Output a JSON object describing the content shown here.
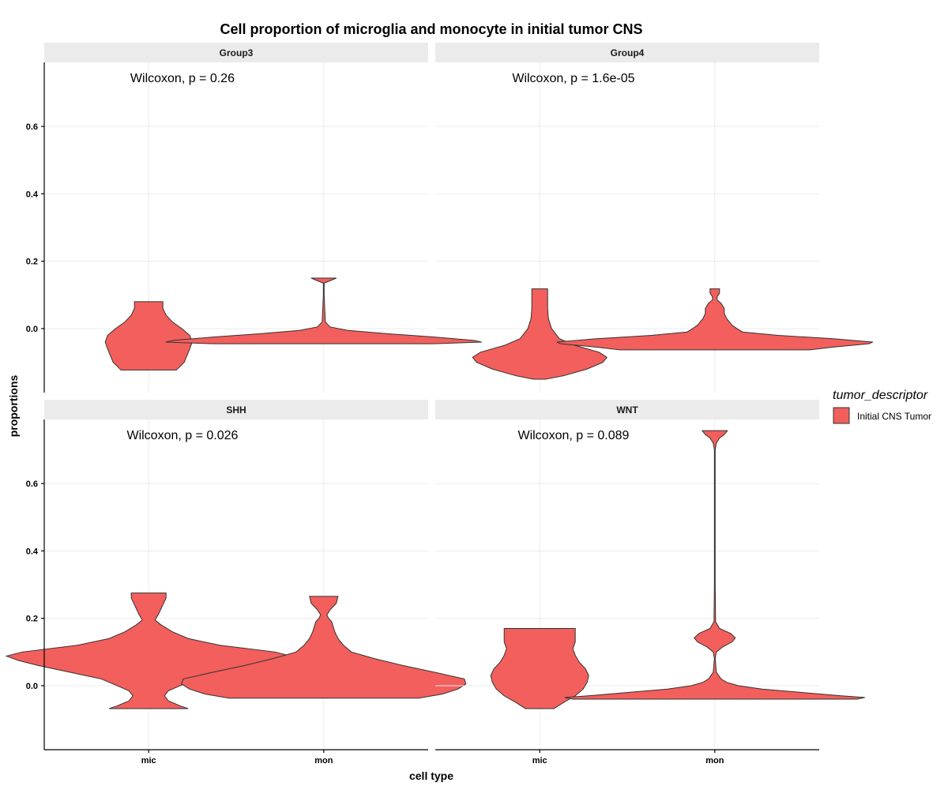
{
  "chart_data": {
    "type": "violin",
    "title": "Cell proportion of microglia and monocyte in initial tumor CNS",
    "xlabel": "cell type",
    "ylabel": "proportions",
    "categories": [
      "mic",
      "mon"
    ],
    "y_ticks": [
      0.0,
      0.2,
      0.4,
      0.6
    ],
    "y_tick_labels": [
      "0.0",
      "0.2",
      "0.4",
      "0.6"
    ],
    "ylim": [
      -0.19,
      0.79
    ],
    "grid": true,
    "legend": {
      "title": "tumor_descriptor",
      "position": "right",
      "entries": [
        {
          "label": "Initial CNS Tumor",
          "color": "#F25F5C"
        }
      ]
    },
    "fill_color": "#F25F5C",
    "panels": [
      {
        "name": "Group3",
        "annotation": "Wilcoxon, p = 0.26",
        "violins": [
          {
            "category": "mic",
            "min": -0.123,
            "max": 0.08,
            "profile": [
              [
                -0.123,
                0.35
              ],
              [
                -0.1,
                0.45
              ],
              [
                -0.06,
                0.52
              ],
              [
                -0.04,
                0.55
              ],
              [
                -0.02,
                0.52
              ],
              [
                0.0,
                0.42
              ],
              [
                0.02,
                0.3
              ],
              [
                0.04,
                0.22
              ],
              [
                0.06,
                0.18
              ],
              [
                0.08,
                0.18
              ]
            ]
          },
          {
            "category": "mon",
            "min": -0.045,
            "max": 0.15,
            "profile": [
              [
                -0.045,
                1.4
              ],
              [
                -0.04,
                2.0
              ],
              [
                -0.035,
                1.9
              ],
              [
                -0.025,
                1.4
              ],
              [
                -0.015,
                0.8
              ],
              [
                -0.005,
                0.3
              ],
              [
                0.005,
                0.08
              ],
              [
                0.02,
                0.02
              ],
              [
                0.1,
                0.005
              ],
              [
                0.135,
                0.005
              ],
              [
                0.142,
                0.08
              ],
              [
                0.15,
                0.16
              ]
            ]
          }
        ]
      },
      {
        "name": "Group4",
        "annotation": "Wilcoxon, p = 1.6e-05",
        "violins": [
          {
            "category": "mic",
            "min": -0.15,
            "max": 0.118,
            "profile": [
              [
                -0.15,
                0.08
              ],
              [
                -0.14,
                0.3
              ],
              [
                -0.12,
                0.6
              ],
              [
                -0.1,
                0.8
              ],
              [
                -0.085,
                0.85
              ],
              [
                -0.07,
                0.75
              ],
              [
                -0.05,
                0.45
              ],
              [
                -0.03,
                0.25
              ],
              [
                0.0,
                0.15
              ],
              [
                0.03,
                0.11
              ],
              [
                0.06,
                0.1
              ],
              [
                0.1,
                0.1
              ],
              [
                0.118,
                0.1
              ]
            ]
          },
          {
            "category": "mon",
            "min": -0.063,
            "max": 0.118,
            "profile": [
              [
                -0.063,
                1.2
              ],
              [
                -0.055,
                1.5
              ],
              [
                -0.045,
                1.95
              ],
              [
                -0.04,
                2.0
              ],
              [
                -0.03,
                1.5
              ],
              [
                -0.02,
                0.8
              ],
              [
                -0.01,
                0.35
              ],
              [
                0.0,
                0.28
              ],
              [
                0.01,
                0.22
              ],
              [
                0.03,
                0.15
              ],
              [
                0.045,
                0.12
              ],
              [
                0.06,
                0.12
              ],
              [
                0.075,
                0.08
              ],
              [
                0.085,
                0.03
              ],
              [
                0.095,
                0.03
              ],
              [
                0.105,
                0.06
              ],
              [
                0.118,
                0.06
              ]
            ]
          }
        ]
      },
      {
        "name": "SHH",
        "annotation": "Wilcoxon, p = 0.026",
        "violins": [
          {
            "category": "mic",
            "min": -0.068,
            "max": 0.275,
            "profile": [
              [
                -0.068,
                0.5
              ],
              [
                -0.06,
                0.4
              ],
              [
                -0.045,
                0.25
              ],
              [
                -0.03,
                0.2
              ],
              [
                -0.015,
                0.25
              ],
              [
                0.0,
                0.4
              ],
              [
                0.02,
                0.6
              ],
              [
                0.04,
                1.0
              ],
              [
                0.06,
                1.4
              ],
              [
                0.075,
                1.65
              ],
              [
                0.088,
                1.8
              ],
              [
                0.1,
                1.6
              ],
              [
                0.12,
                0.9
              ],
              [
                0.14,
                0.5
              ],
              [
                0.16,
                0.3
              ],
              [
                0.18,
                0.16
              ],
              [
                0.195,
                0.08
              ],
              [
                0.21,
                0.12
              ],
              [
                0.24,
                0.18
              ],
              [
                0.26,
                0.22
              ],
              [
                0.275,
                0.22
              ]
            ]
          },
          {
            "category": "mon",
            "min": -0.037,
            "max": 0.265,
            "profile": [
              [
                -0.037,
                1.2
              ],
              [
                -0.025,
                1.5
              ],
              [
                -0.01,
                1.7
              ],
              [
                0.005,
                1.8
              ],
              [
                0.02,
                1.78
              ],
              [
                0.04,
                1.4
              ],
              [
                0.06,
                1.0
              ],
              [
                0.08,
                0.65
              ],
              [
                0.1,
                0.35
              ],
              [
                0.12,
                0.25
              ],
              [
                0.14,
                0.18
              ],
              [
                0.16,
                0.14
              ],
              [
                0.19,
                0.1
              ],
              [
                0.2,
                0.06
              ],
              [
                0.21,
                0.04
              ],
              [
                0.225,
                0.08
              ],
              [
                0.245,
                0.16
              ],
              [
                0.265,
                0.18
              ]
            ]
          }
        ]
      },
      {
        "name": "WNT",
        "annotation": "Wilcoxon, p = 0.089",
        "violins": [
          {
            "category": "mic",
            "min": -0.068,
            "max": 0.17,
            "profile": [
              [
                -0.068,
                0.18
              ],
              [
                -0.05,
                0.3
              ],
              [
                -0.03,
                0.45
              ],
              [
                -0.01,
                0.55
              ],
              [
                0.01,
                0.6
              ],
              [
                0.03,
                0.62
              ],
              [
                0.05,
                0.58
              ],
              [
                0.07,
                0.5
              ],
              [
                0.09,
                0.45
              ],
              [
                0.11,
                0.42
              ],
              [
                0.13,
                0.45
              ],
              [
                0.15,
                0.45
              ],
              [
                0.17,
                0.45
              ]
            ]
          },
          {
            "category": "mon",
            "min": -0.04,
            "max": 0.757,
            "profile": [
              [
                -0.04,
                1.8
              ],
              [
                -0.035,
                1.9
              ],
              [
                -0.03,
                1.6
              ],
              [
                -0.02,
                1.1
              ],
              [
                -0.01,
                0.6
              ],
              [
                0.0,
                0.3
              ],
              [
                0.01,
                0.15
              ],
              [
                0.02,
                0.08
              ],
              [
                0.04,
                0.02
              ],
              [
                0.08,
                0.005
              ],
              [
                0.1,
                0.02
              ],
              [
                0.115,
                0.1
              ],
              [
                0.13,
                0.22
              ],
              [
                0.142,
                0.26
              ],
              [
                0.155,
                0.2
              ],
              [
                0.17,
                0.06
              ],
              [
                0.19,
                0.01
              ],
              [
                0.3,
                0.005
              ],
              [
                0.7,
                0.005
              ],
              [
                0.72,
                0.02
              ],
              [
                0.735,
                0.06
              ],
              [
                0.745,
                0.12
              ],
              [
                0.757,
                0.16
              ]
            ]
          }
        ]
      }
    ]
  }
}
